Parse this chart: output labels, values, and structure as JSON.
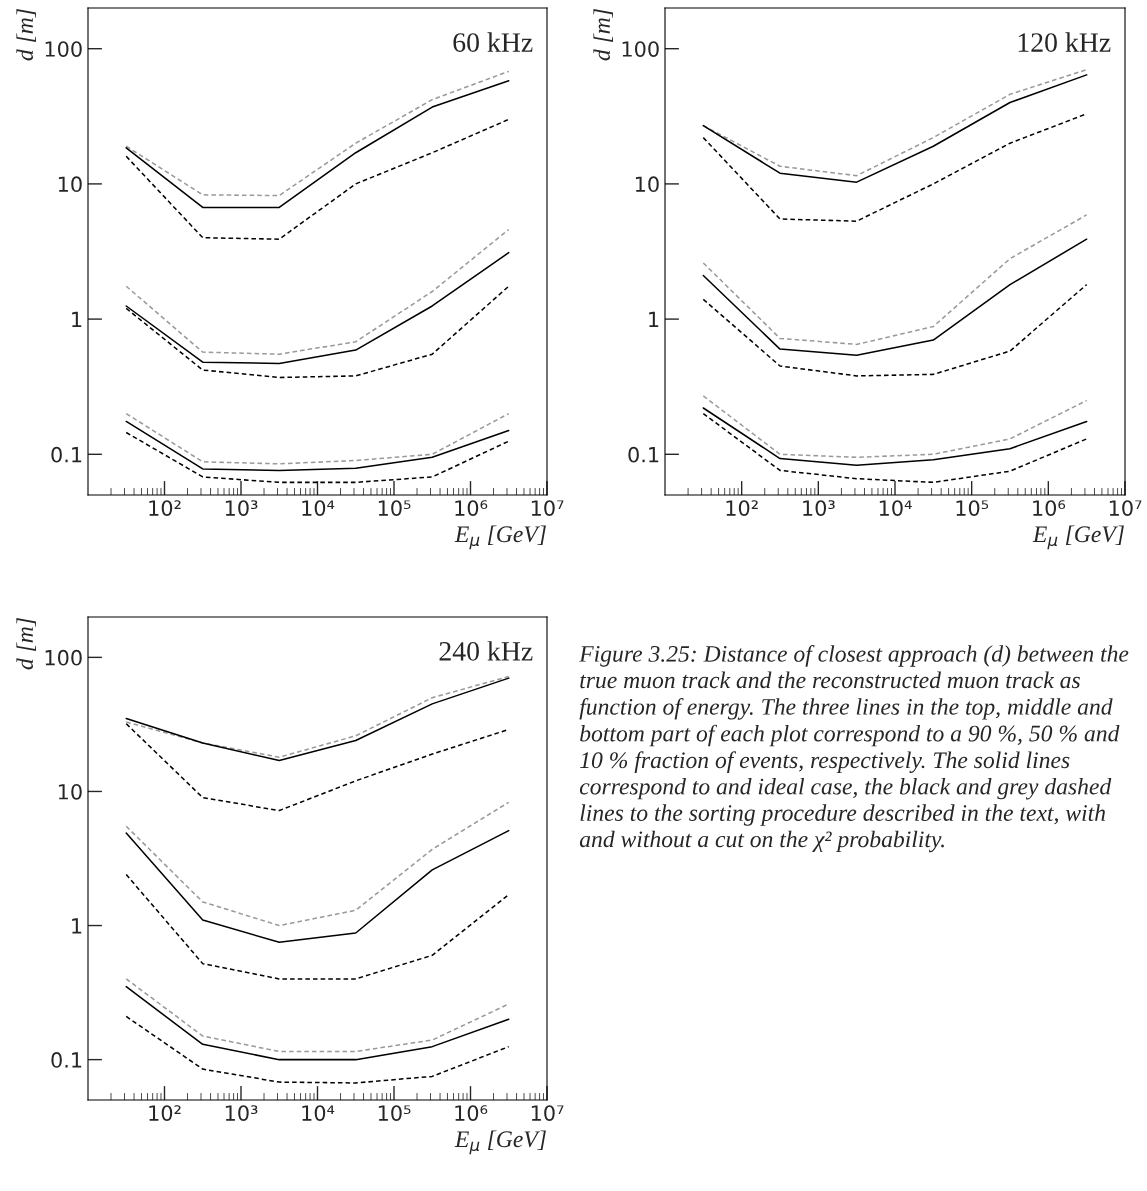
{
  "chart_data": [
    {
      "type": "line",
      "annotations": [
        "60 kHz"
      ],
      "xlabel": "E$_{μ}$ [GeV]",
      "ylabel": "d [m]",
      "log": "xy",
      "x": [
        31.6,
        316,
        3160,
        31600,
        316000,
        3160000
      ],
      "xlim": [
        10,
        10000000
      ],
      "ylim": [
        0.05,
        200
      ],
      "xticks": [
        {
          "value": 100,
          "label": "10²"
        },
        {
          "value": 1000,
          "label": "10³"
        },
        {
          "value": 10000,
          "label": "10⁴"
        },
        {
          "value": 100000,
          "label": "10⁵"
        },
        {
          "value": 1000000,
          "label": "10⁶"
        },
        {
          "value": 10000000,
          "label": "10⁷"
        }
      ],
      "yticks": [
        0.1,
        1,
        10,
        100
      ],
      "series": [
        {
          "color": "#999999",
          "line_style": "dashed",
          "values": [
            19,
            8.3,
            8.2,
            20,
            42,
            68
          ]
        },
        {
          "color": "#000000",
          "line_style": "solid",
          "values": [
            18.5,
            6.7,
            6.7,
            17,
            37,
            58
          ]
        },
        {
          "color": "#000000",
          "line_style": "dashed",
          "values": [
            16,
            4.0,
            3.9,
            10,
            17,
            30
          ]
        },
        {
          "color": "#999999",
          "line_style": "dashed",
          "values": [
            1.75,
            0.57,
            0.55,
            0.68,
            1.6,
            4.6
          ]
        },
        {
          "color": "#000000",
          "line_style": "solid",
          "values": [
            1.25,
            0.48,
            0.47,
            0.59,
            1.25,
            3.1
          ]
        },
        {
          "color": "#000000",
          "line_style": "dashed",
          "values": [
            1.2,
            0.42,
            0.37,
            0.38,
            0.55,
            1.75
          ]
        },
        {
          "color": "#999999",
          "line_style": "dashed",
          "values": [
            0.2,
            0.088,
            0.085,
            0.09,
            0.1,
            0.2
          ]
        },
        {
          "color": "#000000",
          "line_style": "solid",
          "values": [
            0.175,
            0.078,
            0.076,
            0.079,
            0.095,
            0.15
          ]
        },
        {
          "color": "#000000",
          "line_style": "dashed",
          "values": [
            0.145,
            0.068,
            0.062,
            0.062,
            0.068,
            0.125
          ]
        }
      ]
    },
    {
      "type": "line",
      "annotations": [
        "120 kHz"
      ],
      "xlabel": "E$_{μ}$ [GeV]",
      "ylabel": "d [m]",
      "log": "xy",
      "x": [
        31.6,
        316,
        3160,
        31600,
        316000,
        3160000
      ],
      "xlim": [
        10,
        10000000
      ],
      "ylim": [
        0.05,
        200
      ],
      "xticks": [
        {
          "value": 100,
          "label": "10²"
        },
        {
          "value": 1000,
          "label": "10³"
        },
        {
          "value": 10000,
          "label": "10⁴"
        },
        {
          "value": 100000,
          "label": "10⁵"
        },
        {
          "value": 1000000,
          "label": "10⁶"
        },
        {
          "value": 10000000,
          "label": "10⁷"
        }
      ],
      "yticks": [
        0.1,
        1,
        10,
        100
      ],
      "series": [
        {
          "color": "#999999",
          "line_style": "dashed",
          "values": [
            27,
            13.5,
            11.5,
            22,
            46,
            70
          ]
        },
        {
          "color": "#000000",
          "line_style": "solid",
          "values": [
            27,
            12,
            10.3,
            19,
            40,
            64
          ]
        },
        {
          "color": "#000000",
          "line_style": "dashed",
          "values": [
            22,
            5.5,
            5.3,
            10,
            20,
            33
          ]
        },
        {
          "color": "#999999",
          "line_style": "dashed",
          "values": [
            2.6,
            0.72,
            0.65,
            0.88,
            2.8,
            5.9
          ]
        },
        {
          "color": "#000000",
          "line_style": "solid",
          "values": [
            2.1,
            0.6,
            0.54,
            0.7,
            1.8,
            3.9
          ]
        },
        {
          "color": "#000000",
          "line_style": "dashed",
          "values": [
            1.4,
            0.45,
            0.38,
            0.39,
            0.58,
            1.8
          ]
        },
        {
          "color": "#999999",
          "line_style": "dashed",
          "values": [
            0.27,
            0.1,
            0.095,
            0.1,
            0.13,
            0.25
          ]
        },
        {
          "color": "#000000",
          "line_style": "solid",
          "values": [
            0.22,
            0.093,
            0.083,
            0.091,
            0.11,
            0.175
          ]
        },
        {
          "color": "#000000",
          "line_style": "dashed",
          "values": [
            0.2,
            0.076,
            0.066,
            0.062,
            0.075,
            0.13
          ]
        }
      ]
    },
    {
      "type": "line",
      "annotations": [
        "240 kHz"
      ],
      "xlabel": "E$_{μ}$ [GeV]",
      "ylabel": "d [m]",
      "log": "xy",
      "x": [
        31.6,
        316,
        3160,
        31600,
        316000,
        3160000
      ],
      "xlim": [
        10,
        10000000
      ],
      "ylim": [
        0.05,
        200
      ],
      "xticks": [
        {
          "value": 100,
          "label": "10²"
        },
        {
          "value": 1000,
          "label": "10³"
        },
        {
          "value": 10000,
          "label": "10⁴"
        },
        {
          "value": 100000,
          "label": "10⁵"
        },
        {
          "value": 1000000,
          "label": "10⁶"
        },
        {
          "value": 10000000,
          "label": "10⁷"
        }
      ],
      "yticks": [
        0.1,
        1,
        10,
        100
      ],
      "series": [
        {
          "color": "#999999",
          "line_style": "dashed",
          "values": [
            33,
            23,
            18,
            26,
            50,
            72
          ]
        },
        {
          "color": "#000000",
          "line_style": "solid",
          "values": [
            35,
            23,
            17,
            24,
            45,
            70
          ]
        },
        {
          "color": "#000000",
          "line_style": "dashed",
          "values": [
            32,
            9,
            7.2,
            12,
            19,
            29
          ]
        },
        {
          "color": "#999999",
          "line_style": "dashed",
          "values": [
            5.5,
            1.5,
            1.0,
            1.3,
            3.7,
            8.3
          ]
        },
        {
          "color": "#000000",
          "line_style": "solid",
          "values": [
            4.9,
            1.1,
            0.75,
            0.88,
            2.6,
            5.1
          ]
        },
        {
          "color": "#000000",
          "line_style": "dashed",
          "values": [
            2.4,
            0.52,
            0.4,
            0.4,
            0.6,
            1.7
          ]
        },
        {
          "color": "#999999",
          "line_style": "dashed",
          "values": [
            0.4,
            0.15,
            0.115,
            0.115,
            0.14,
            0.26
          ]
        },
        {
          "color": "#000000",
          "line_style": "solid",
          "values": [
            0.35,
            0.13,
            0.1,
            0.1,
            0.125,
            0.2
          ]
        },
        {
          "color": "#000000",
          "line_style": "dashed",
          "values": [
            0.21,
            0.085,
            0.068,
            0.067,
            0.075,
            0.125
          ]
        }
      ]
    },
    {
      "type": "other",
      "annotations": [
        "Figure 3.25: Distance of closest approach (d) between the true muon track and the reconstructed muon track as function of energy. The three lines in the top, middle and bottom part of each plot correspond to a 90 %, 50 % and 10 % fraction of events, respectively. The solid lines correspond to and ideal case, the black and grey dashed lines to the sorting procedure described in the text, with and without a cut on the χ² probability."
      ]
    }
  ]
}
